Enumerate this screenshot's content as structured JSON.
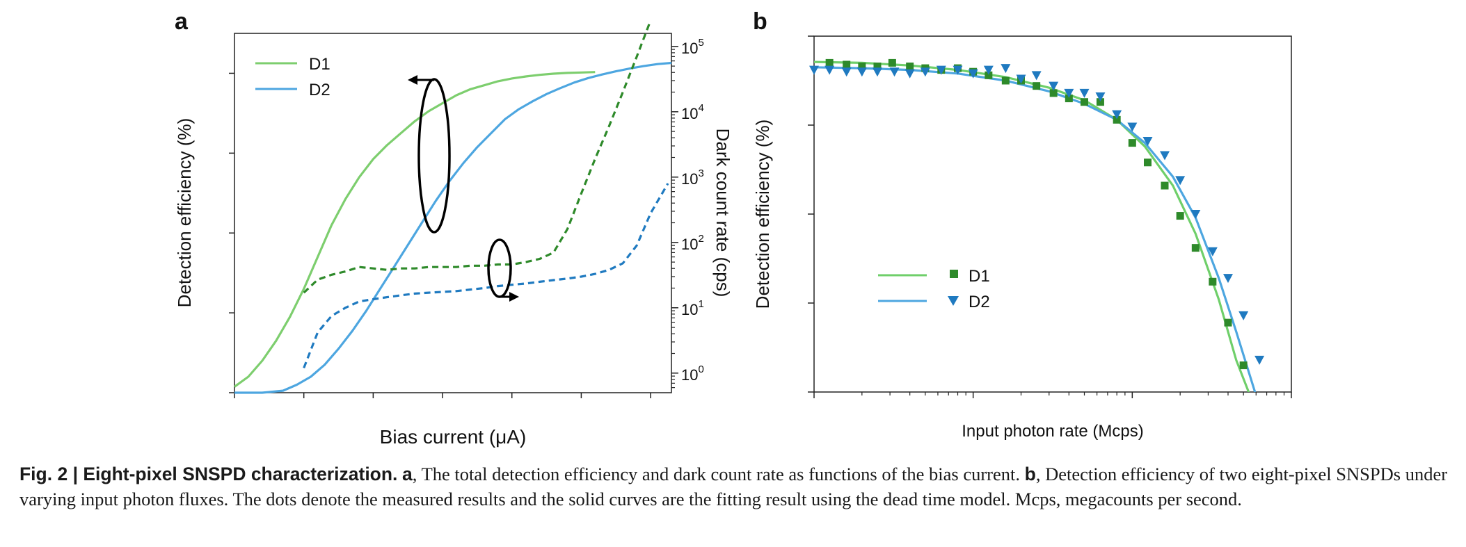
{
  "chart_data": [
    {
      "panel": "a",
      "type": "line",
      "xlabel": "Bias current (μA)",
      "ylabel": "Detection efficiency (%)",
      "y2label": "Dark count rate (cps)",
      "xlim": [
        5,
        11.3
      ],
      "ylim": [
        0,
        90
      ],
      "y2lim_log10": [
        -0.3,
        5.2
      ],
      "y2scale": "log",
      "x_ticks": [
        "5",
        "6",
        "7",
        "8",
        "9",
        "10",
        "11"
      ],
      "y_ticks": [
        "0",
        "20",
        "40",
        "60",
        "80"
      ],
      "y2_ticks": [
        {
          "base": "10",
          "exp": "0"
        },
        {
          "base": "10",
          "exp": "1"
        },
        {
          "base": "10",
          "exp": "2"
        },
        {
          "base": "10",
          "exp": "3"
        },
        {
          "base": "10",
          "exp": "4"
        },
        {
          "base": "10",
          "exp": "5"
        }
      ],
      "legend_position": "top-left",
      "series": [
        {
          "name": "D1",
          "color": "#7dce6e",
          "style": "solid",
          "axis": "left",
          "x": [
            5.0,
            5.2,
            5.4,
            5.6,
            5.8,
            6.0,
            6.2,
            6.4,
            6.6,
            6.8,
            7.0,
            7.2,
            7.4,
            7.6,
            7.8,
            8.0,
            8.2,
            8.4,
            8.6,
            8.8,
            9.0,
            9.2,
            9.4,
            9.6,
            9.8,
            10.0,
            10.2
          ],
          "y": [
            1.5,
            4,
            8,
            13,
            19,
            26,
            34,
            42,
            48.5,
            54,
            58.5,
            62,
            65,
            68,
            70.5,
            72.5,
            74.5,
            76,
            77,
            78,
            78.7,
            79.2,
            79.6,
            79.9,
            80.1,
            80.2,
            80.3
          ]
        },
        {
          "name": "D2",
          "color": "#4da6e0",
          "style": "solid",
          "axis": "left",
          "x": [
            5.0,
            5.4,
            5.7,
            5.9,
            6.1,
            6.3,
            6.5,
            6.7,
            6.9,
            7.1,
            7.3,
            7.5,
            7.7,
            7.9,
            8.1,
            8.3,
            8.5,
            8.7,
            8.9,
            9.1,
            9.3,
            9.5,
            9.7,
            9.9,
            10.1,
            10.3,
            10.5,
            10.7,
            10.9,
            11.1,
            11.3
          ],
          "y": [
            0,
            0,
            0.5,
            2,
            4,
            7,
            11,
            15.5,
            20.5,
            26,
            31.5,
            37,
            42.5,
            48,
            53,
            57.5,
            61.5,
            65,
            68.5,
            71,
            73,
            74.8,
            76.3,
            77.7,
            78.8,
            79.7,
            80.5,
            81.2,
            81.8,
            82.3,
            82.6
          ]
        },
        {
          "name": "D1 dark count",
          "color": "#2e8a2a",
          "style": "dashed",
          "axis": "right",
          "x": [
            6.0,
            6.2,
            6.4,
            6.6,
            6.8,
            7.0,
            7.2,
            7.4,
            7.6,
            7.8,
            8.0,
            8.2,
            8.4,
            8.6,
            8.8,
            9.0,
            9.2,
            9.4,
            9.6,
            9.8,
            10.0,
            10.2,
            10.4,
            10.6,
            10.8,
            11.0
          ],
          "y": [
            17,
            27,
            32,
            36,
            42,
            40,
            38,
            40,
            40,
            42,
            42,
            42,
            44,
            44,
            46,
            46,
            50,
            56,
            70,
            160,
            560,
            1900,
            6000,
            20000,
            70000,
            250000
          ]
        },
        {
          "name": "D2 dark count",
          "color": "#1f7ac0",
          "style": "dashed",
          "axis": "right",
          "x": [
            6.0,
            6.2,
            6.4,
            6.6,
            6.8,
            7.0,
            7.2,
            7.4,
            7.6,
            7.8,
            8.0,
            8.2,
            8.4,
            8.6,
            8.8,
            9.0,
            9.2,
            9.4,
            9.6,
            9.8,
            10.0,
            10.2,
            10.4,
            10.6,
            10.8,
            11.0,
            11.25
          ],
          "y": [
            1.2,
            4.2,
            7.5,
            10,
            12.5,
            13.5,
            14.5,
            15.5,
            16.5,
            17,
            17.5,
            18,
            19,
            20,
            21.5,
            22.5,
            23.5,
            25,
            26.5,
            28,
            30,
            33,
            38,
            48,
            90,
            280,
            800
          ]
        }
      ]
    },
    {
      "panel": "b",
      "type": "scatter",
      "xlabel": "Input photon rate (Mcps)",
      "ylabel": "Detection efficiency (%)",
      "xscale": "log",
      "xlim": [
        1,
        1000
      ],
      "ylim": [
        60,
        80
      ],
      "x_ticks": [
        "1",
        "10",
        "100",
        "1,000"
      ],
      "y_ticks": [
        "60",
        "65",
        "70",
        "75",
        "80"
      ],
      "legend_position": "center-left",
      "series": [
        {
          "name": "D1",
          "color": "#6fcf6a",
          "marker_color": "#2e8a2a",
          "marker": "square",
          "x": [
            1.25,
            1.6,
            2.0,
            2.5,
            3.1,
            4.0,
            5.0,
            6.3,
            8.0,
            10,
            12.5,
            16,
            20,
            25,
            32,
            40,
            50,
            63,
            80,
            100,
            125,
            160,
            200,
            250,
            320,
            400,
            500
          ],
          "y": [
            78.5,
            78.4,
            78.3,
            78.3,
            78.5,
            78.3,
            78.2,
            78.1,
            78.2,
            78.0,
            77.8,
            77.5,
            77.5,
            77.2,
            76.8,
            76.5,
            76.3,
            76.3,
            75.3,
            74.0,
            72.9,
            71.6,
            69.9,
            68.1,
            66.2,
            63.9,
            61.5
          ],
          "fit_x": [
            1,
            2,
            4,
            8,
            16,
            30,
            50,
            80,
            120,
            180,
            250,
            350,
            450,
            550
          ],
          "fit_y": [
            78.55,
            78.5,
            78.35,
            78.1,
            77.7,
            77.1,
            76.4,
            75.3,
            73.8,
            71.6,
            68.9,
            65.2,
            61.8,
            59.8
          ]
        },
        {
          "name": "D2",
          "color": "#4da6e0",
          "marker_color": "#1f7ac0",
          "marker": "triangle-down",
          "x": [
            1.0,
            1.25,
            1.6,
            2.0,
            2.5,
            3.2,
            4.0,
            5.0,
            6.3,
            8.0,
            10,
            12.5,
            16,
            20,
            25,
            32,
            40,
            50,
            63,
            80,
            100,
            125,
            160,
            200,
            250,
            320,
            400,
            500,
            630
          ],
          "y": [
            78.1,
            78.1,
            78.0,
            78.0,
            78.0,
            78.0,
            77.9,
            78.0,
            78.1,
            78.1,
            77.9,
            78.1,
            78.2,
            77.6,
            77.8,
            77.2,
            76.8,
            76.8,
            76.6,
            75.6,
            74.9,
            74.1,
            73.3,
            71.9,
            70.0,
            67.9,
            66.4,
            64.3,
            61.8
          ],
          "fit_x": [
            1,
            2,
            4,
            8,
            16,
            30,
            50,
            80,
            120,
            180,
            250,
            350,
            450,
            600
          ],
          "fit_y": [
            78.25,
            78.2,
            78.1,
            77.9,
            77.5,
            76.9,
            76.2,
            75.3,
            74.0,
            72.1,
            69.8,
            66.4,
            63.4,
            59.8
          ]
        }
      ]
    }
  ],
  "caption": {
    "fig_label": "Fig. 2 | Eight-pixel SNSPD characterization.",
    "a_label": "a",
    "a_text": ", The total detection efficiency and dark count rate as functions of the bias current.",
    "b_label": "b",
    "b_text": ", Detection efficiency of two eight-pixel SNSPDs under varying input photon fluxes. The dots denote the measured results and the solid curves are the fitting result using the dead time model. Mcps, megacounts per second."
  }
}
